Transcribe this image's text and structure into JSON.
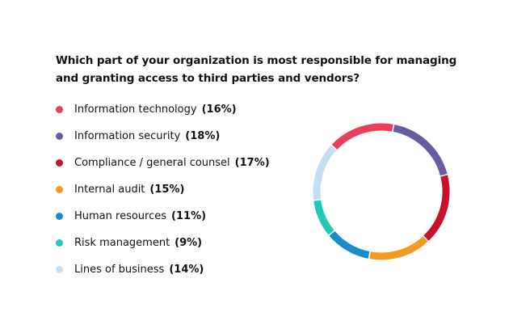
{
  "chart_data": {
    "type": "pie",
    "title": "Which part of your organization is most responsible for managing and granting access to third parties and vendors?",
    "unit": "%",
    "categories": [
      "Information technology",
      "Information security",
      "Compliance / general counsel",
      "Internal audit",
      "Human resources",
      "Risk management",
      "Lines of business"
    ],
    "values": [
      16,
      18,
      17,
      15,
      11,
      9,
      14
    ],
    "value_labels": [
      "(16%)",
      "(18%)",
      "(17%)",
      "(15%)",
      "(11%)",
      "(9%)",
      "(14%)"
    ],
    "colors": [
      "#ec3d5a",
      "#6a5a9f",
      "#c8102e",
      "#f39c1f",
      "#1a8ccc",
      "#23c9b5",
      "#c4dff0"
    ],
    "style": "donut-ring",
    "legend_position": "left"
  }
}
